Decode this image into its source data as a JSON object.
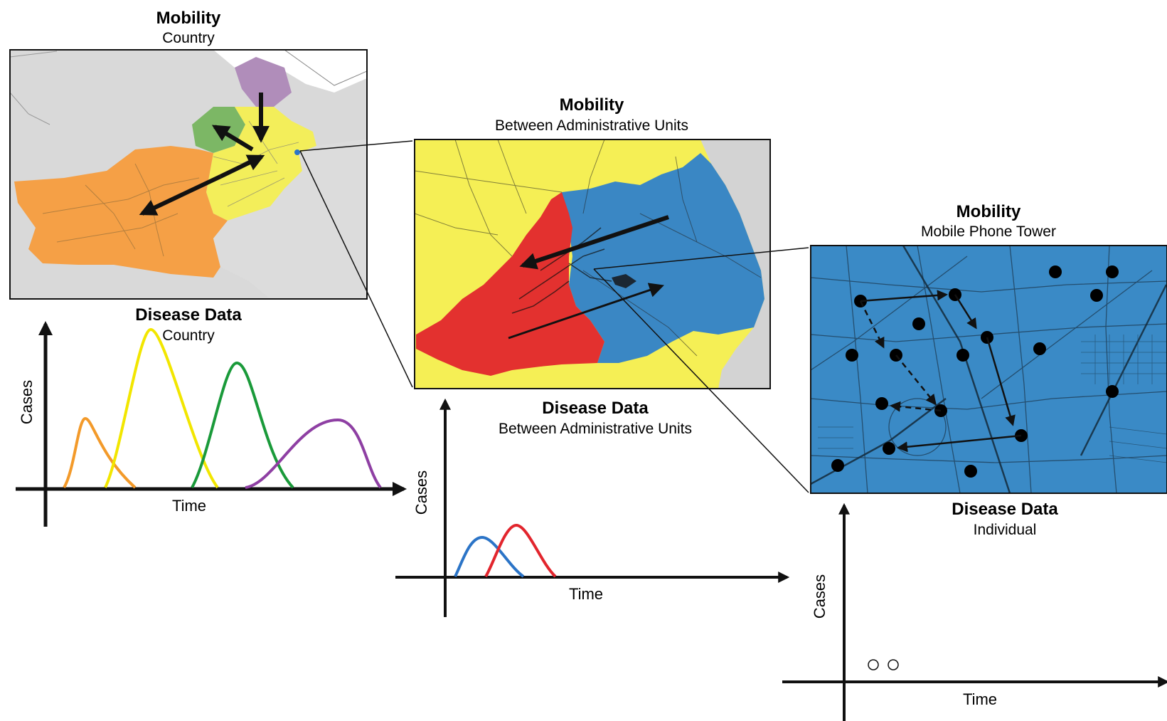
{
  "panels": {
    "country": {
      "mobility_title": "Mobility",
      "mobility_subtitle": "Country",
      "disease_title": "Disease Data",
      "disease_subtitle": "Country",
      "y_label": "Cases",
      "x_label": "Time",
      "colors": {
        "orange": "#f39a2a",
        "yellow": "#f2e600",
        "green": "#1a9a3a",
        "purple": "#8e3fa3"
      }
    },
    "admin": {
      "mobility_title": "Mobility",
      "mobility_subtitle": "Between Administrative Units",
      "disease_title": "Disease Data",
      "disease_subtitle": "Between Administrative Units",
      "y_label": "Cases",
      "x_label": "Time",
      "colors": {
        "blue": "#2b74c7",
        "red": "#e2252d",
        "yellow": "#f5ef55"
      }
    },
    "tower": {
      "mobility_title": "Mobility",
      "mobility_subtitle": "Mobile Phone Tower",
      "disease_title": "Disease Data",
      "disease_subtitle": "Individual",
      "y_label": "Cases",
      "x_label": "Time",
      "colors": {
        "map": "#3a8ac6"
      }
    }
  }
}
